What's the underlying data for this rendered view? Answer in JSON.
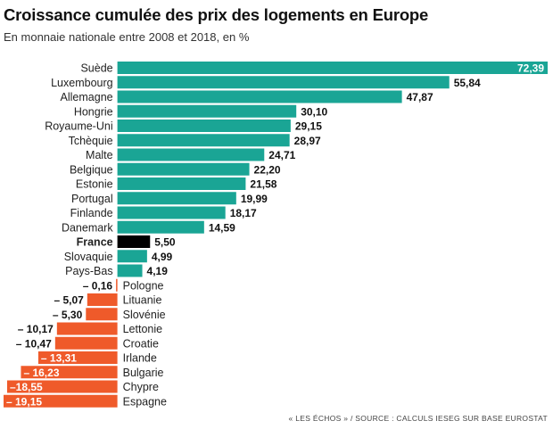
{
  "header": {
    "title": "Croissance cumulée des prix des logements en Europe",
    "subtitle": "En monnaie nationale entre 2008 et 2018, en %"
  },
  "footer": {
    "source": "« LES ÉCHOS » / SOURCE : CALCULS IESEG SUR BASE EUROSTAT"
  },
  "colors": {
    "positive": "#1aa595",
    "negative": "#ef5a2a",
    "highlight": "#000000",
    "label_on_bar": "#ffffff",
    "label": "#111111"
  },
  "chart_data": {
    "type": "bar",
    "orientation": "horizontal",
    "title": "Croissance cumulée des prix des logements en Europe",
    "subtitle": "En monnaie nationale entre 2008 et 2018, en %",
    "xlim": [
      -19.15,
      72.39
    ],
    "highlight": "France",
    "categories": [
      "Suède",
      "Luxembourg",
      "Allemagne",
      "Hongrie",
      "Royaume-Uni",
      "Tchèquie",
      "Malte",
      "Belgique",
      "Estonie",
      "Portugal",
      "Finlande",
      "Danemark",
      "France",
      "Slovaquie",
      "Pays-Bas",
      "Pologne",
      "Lituanie",
      "Slovénie",
      "Lettonie",
      "Croatie",
      "Irlande",
      "Bulgarie",
      "Chypre",
      "Espagne"
    ],
    "values": [
      72.39,
      55.84,
      47.87,
      30.1,
      29.15,
      28.97,
      24.71,
      22.2,
      21.58,
      19.99,
      18.17,
      14.59,
      5.5,
      4.99,
      4.19,
      -0.16,
      -5.07,
      -5.3,
      -10.17,
      -10.47,
      -13.31,
      -16.23,
      -18.55,
      -19.15
    ],
    "value_labels": [
      "72,39",
      "55,84",
      "47,87",
      "30,10",
      "29,15",
      "28,97",
      "24,71",
      "22,20",
      "21,58",
      "19,99",
      "18,17",
      "14,59",
      "5,50",
      "4,99",
      "4,19",
      "– 0,16",
      "– 5,07",
      "– 5,30",
      "– 10,17",
      "– 10,47",
      "– 13,31",
      "– 16,23",
      "–18,55",
      "– 19,15"
    ]
  }
}
